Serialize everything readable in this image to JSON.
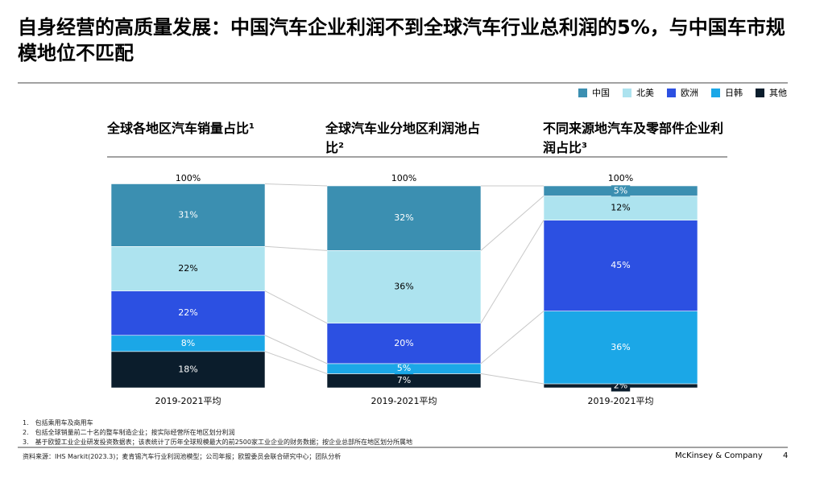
{
  "title": "自身经营的高质量发展：中国汽车企业利润不到全球汽车行业总利润的5%，与中国车市规模地位不匹配",
  "chart_data": {
    "type": "stacked_bar",
    "panel_titles": [
      "全球各地区汽车销量占比¹",
      "全球汽车业分地区利润池占比²",
      "不同来源地汽车及零部件企业利润占比³"
    ],
    "categories": [
      "2019-2021平均",
      "2019-2021平均",
      "2019-2021平均"
    ],
    "total_labels": [
      "100%",
      "100%",
      "100%"
    ],
    "ylim": [
      0,
      100
    ],
    "series": [
      {
        "name": "中国",
        "color": "#3b8fb1",
        "values": [
          31,
          32,
          5
        ],
        "value_labels": [
          "31%",
          "32%",
          "5%"
        ]
      },
      {
        "name": "北美",
        "color": "#ade3ef",
        "values": [
          22,
          36,
          12
        ],
        "value_labels": [
          "22%",
          "36%",
          "12%"
        ]
      },
      {
        "name": "欧洲",
        "color": "#2c50e2",
        "values": [
          22,
          20,
          45
        ],
        "value_labels": [
          "22%",
          "20%",
          "45%"
        ]
      },
      {
        "name": "日韩",
        "color": "#1ba7e7",
        "values": [
          8,
          5,
          36
        ],
        "value_labels": [
          "8%",
          "5%",
          "36%"
        ]
      },
      {
        "name": "其他",
        "color": "#0b1d2c",
        "values": [
          18,
          7,
          2
        ],
        "value_labels": [
          "18%",
          "7%",
          "2%"
        ]
      }
    ]
  },
  "footnotes": [
    "1.　包括乘用车及商用车",
    "2.　包括全球销量前二十名的整车制造企业；按实际经营所在地区划分利润",
    "3.　基于欧盟工业企业研发投资数据表；该表统计了历年全球规模最大的前2500家工业企业的财务数据；按企业总部所在地区划分所属地"
  ],
  "source": "资料来源：IHS Markit(2023.3)；麦肯锡汽车行业利润池模型；公司年报；欧盟委员会联合研究中心；团队分析",
  "brand": "McKinsey & Company",
  "page": "4"
}
